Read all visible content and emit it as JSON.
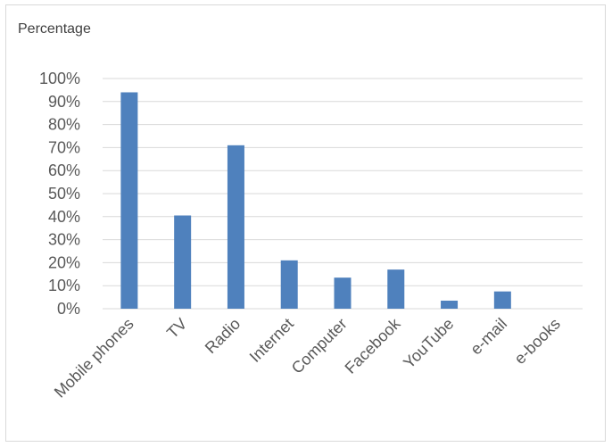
{
  "chart_data": {
    "type": "bar",
    "title": "",
    "xlabel": "",
    "ylabel": "Percentage",
    "categories": [
      "Mobile phones",
      "TV",
      "Radio",
      "Internet",
      "Computer",
      "Facebook",
      "YouTube",
      "e-mail",
      "e-books"
    ],
    "values": [
      94,
      40.5,
      71,
      21,
      13.5,
      17,
      3.5,
      7.5,
      0
    ],
    "ylim": [
      0,
      100
    ],
    "yticks": [
      "0%",
      "10%",
      "20%",
      "30%",
      "40%",
      "50%",
      "60%",
      "70%",
      "80%",
      "90%",
      "100%"
    ],
    "grid": true,
    "legend": "none",
    "bar_color": "#4f81bd",
    "grid_color": "#d9d9d9"
  }
}
